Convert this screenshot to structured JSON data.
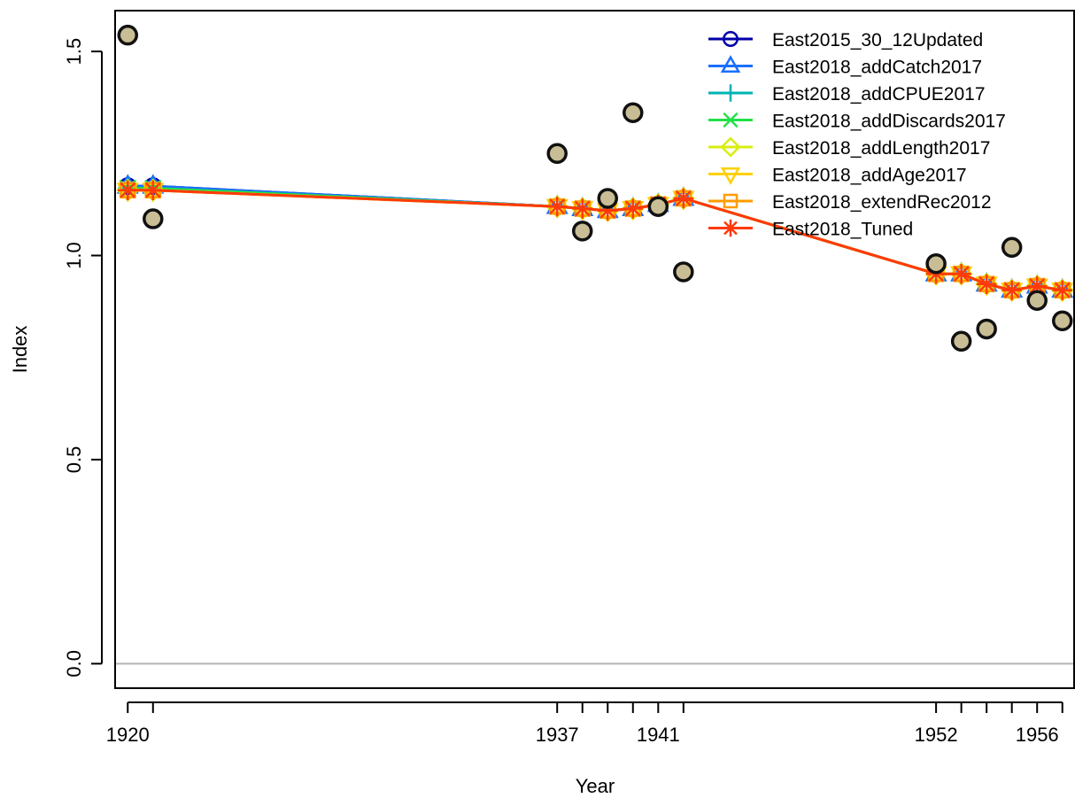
{
  "chart_data": {
    "type": "line",
    "xlabel": "Year",
    "ylabel": "Index",
    "xlim": [
      1919.5,
      1957.5
    ],
    "ylim": [
      -0.06,
      1.6
    ],
    "x_ticks": [
      1920,
      1937,
      1941,
      1952,
      1956
    ],
    "y_ticks": [
      0.0,
      0.5,
      1.0,
      1.5
    ],
    "y_tick_labels": [
      "0.0",
      "0.5",
      "1.0",
      "1.5"
    ],
    "reference_line_y": 0,
    "legend_position": "top-right",
    "observed": {
      "x": [
        1920,
        1921,
        1937,
        1938,
        1939,
        1940,
        1941,
        1942,
        1952,
        1953,
        1954,
        1955,
        1956,
        1957
      ],
      "y": [
        1.54,
        1.09,
        1.25,
        1.06,
        1.14,
        1.35,
        1.12,
        0.96,
        0.98,
        0.79,
        0.82,
        1.02,
        0.89,
        0.84
      ]
    },
    "x": [
      1920,
      1921,
      1937,
      1938,
      1939,
      1940,
      1941,
      1942,
      1952,
      1953,
      1954,
      1955,
      1956,
      1957
    ],
    "series": [
      {
        "name": "East2015_30_12Updated",
        "color": "#0000a8",
        "marker": "circle",
        "values": [
          1.17,
          1.17,
          1.12,
          1.115,
          1.11,
          1.115,
          1.125,
          1.14,
          0.955,
          0.955,
          0.93,
          0.915,
          0.925,
          0.915
        ]
      },
      {
        "name": "East2018_addCatch2017",
        "color": "#1a6fff",
        "marker": "triangle-up",
        "values": [
          1.17,
          1.17,
          1.12,
          1.115,
          1.11,
          1.115,
          1.125,
          1.14,
          0.955,
          0.955,
          0.93,
          0.915,
          0.925,
          0.915
        ]
      },
      {
        "name": "East2018_addCPUE2017",
        "color": "#00b3b3",
        "marker": "plus",
        "values": [
          1.165,
          1.165,
          1.12,
          1.115,
          1.11,
          1.115,
          1.125,
          1.14,
          0.955,
          0.955,
          0.93,
          0.915,
          0.925,
          0.915
        ]
      },
      {
        "name": "East2018_addDiscards2017",
        "color": "#22e04a",
        "marker": "cross",
        "values": [
          1.165,
          1.165,
          1.12,
          1.115,
          1.11,
          1.115,
          1.125,
          1.14,
          0.955,
          0.955,
          0.93,
          0.915,
          0.925,
          0.915
        ]
      },
      {
        "name": "East2018_addLength2017",
        "color": "#d8ee10",
        "marker": "diamond",
        "values": [
          1.16,
          1.16,
          1.12,
          1.115,
          1.11,
          1.115,
          1.125,
          1.14,
          0.955,
          0.955,
          0.93,
          0.915,
          0.925,
          0.915
        ]
      },
      {
        "name": "East2018_addAge2017",
        "color": "#ffd000",
        "marker": "triangle-down",
        "values": [
          1.16,
          1.16,
          1.12,
          1.115,
          1.11,
          1.115,
          1.125,
          1.14,
          0.955,
          0.955,
          0.93,
          0.915,
          0.925,
          0.915
        ]
      },
      {
        "name": "East2018_extendRec2012",
        "color": "#ff9d00",
        "marker": "square",
        "values": [
          1.16,
          1.16,
          1.12,
          1.115,
          1.11,
          1.115,
          1.125,
          1.14,
          0.955,
          0.955,
          0.93,
          0.915,
          0.925,
          0.915
        ]
      },
      {
        "name": "East2018_Tuned",
        "color": "#ff3a0a",
        "marker": "asterisk",
        "values": [
          1.16,
          1.16,
          1.12,
          1.115,
          1.11,
          1.115,
          1.125,
          1.14,
          0.955,
          0.955,
          0.93,
          0.915,
          0.925,
          0.915
        ]
      }
    ]
  }
}
